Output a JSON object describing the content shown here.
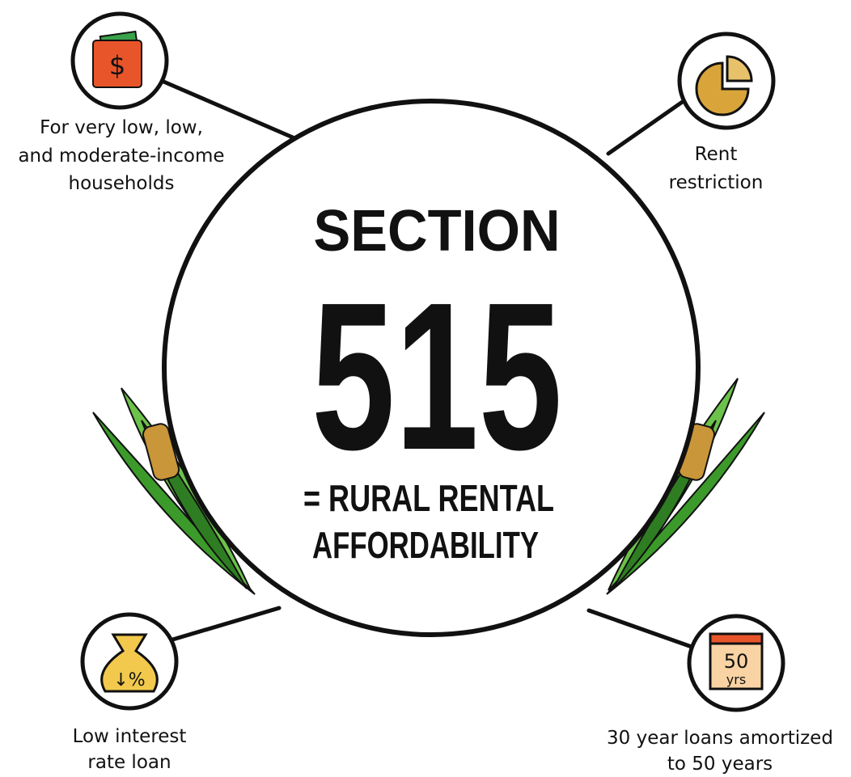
{
  "title": {
    "line1": "SECTION",
    "number": "515",
    "subtitle_lines": [
      "= RURAL RENTAL",
      "AFFORDABILITY"
    ]
  },
  "nodes": [
    {
      "icon_text": "$",
      "label_lines": [
        "For very low, low,",
        "and moderate-income",
        "households"
      ]
    },
    {
      "label_lines": [
        "Rent",
        "restriction"
      ]
    },
    {
      "icon_text": "↓%",
      "label_lines": [
        "Low interest",
        "rate loan"
      ]
    },
    {
      "icon_text": [
        "50",
        "yrs"
      ],
      "label_lines": [
        "30 year loans amortized",
        "to 50 years"
      ]
    }
  ]
}
